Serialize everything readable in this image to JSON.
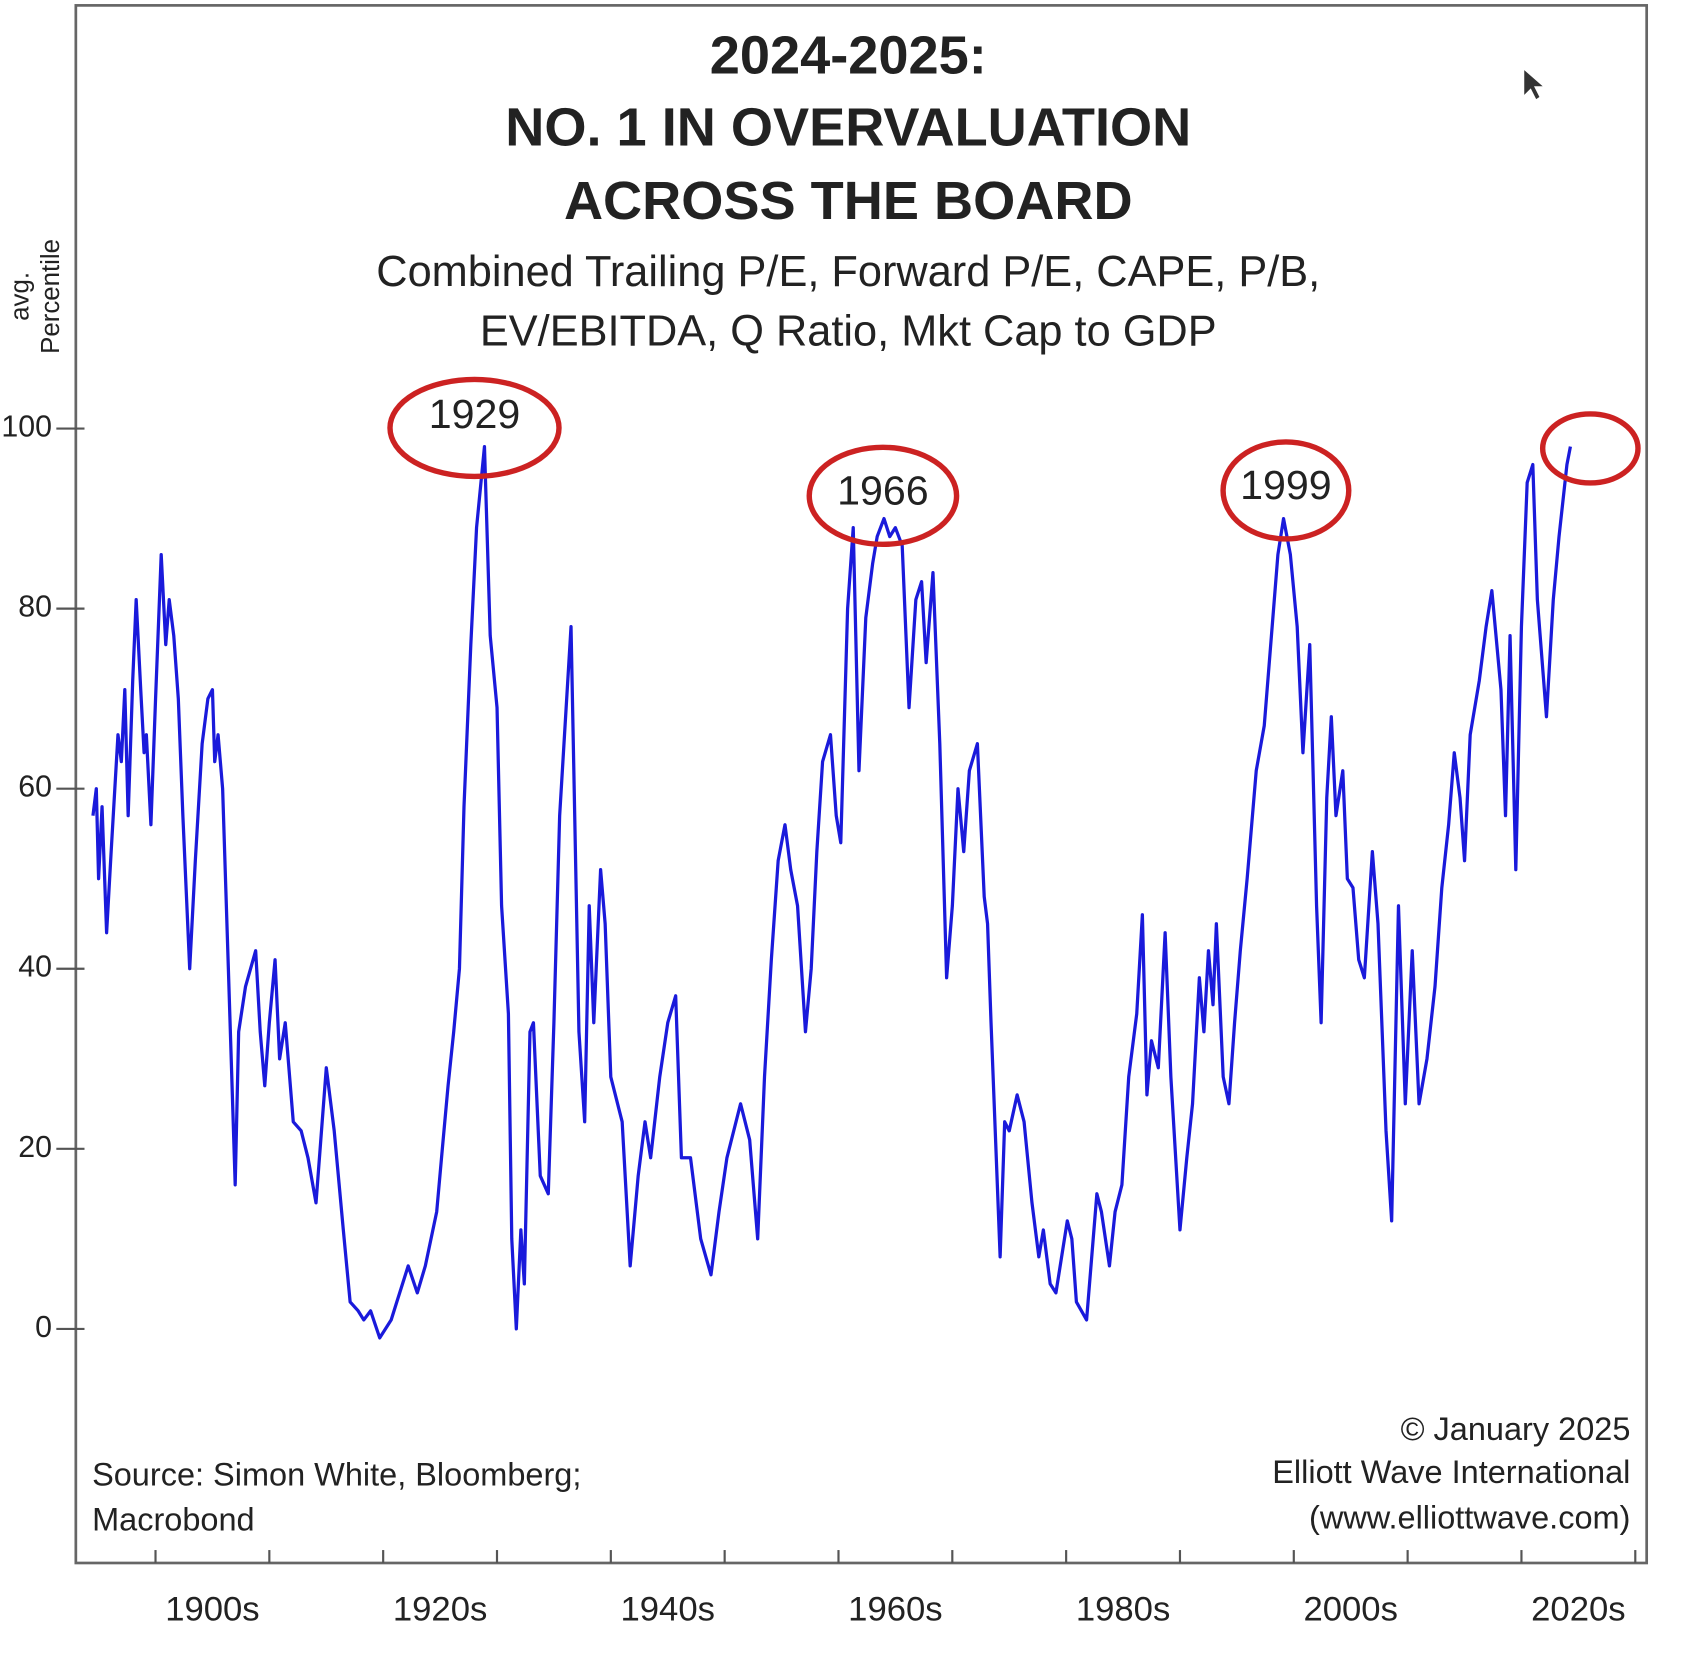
{
  "chart_data": {
    "type": "line",
    "title": [
      "2024-2025:",
      "NO. 1 IN OVERVALUATION",
      "ACROSS THE BOARD"
    ],
    "subtitle": [
      "Combined Trailing P/E, Forward P/E, CAPE, P/B,",
      "EV/EBITDA, Q Ratio, Mkt Cap to GDP"
    ],
    "y_label": [
      "avg.",
      "Percentile"
    ],
    "source": [
      "Source: Simon White, Bloomberg;",
      "Macrobond"
    ],
    "credit": [
      "© January 2025",
      "Elliott Wave International",
      "(www.elliottwave.com)"
    ],
    "annotations": [
      "1929",
      "1966",
      "1999"
    ],
    "color": "#1a1adb",
    "xlim": [
      1893,
      2031
    ],
    "ylim": [
      -26,
      147
    ],
    "yticks": [
      0,
      20,
      40,
      60,
      80,
      100
    ],
    "xticks": [
      {
        "value": 1905,
        "label": "1900s"
      },
      {
        "value": 1925,
        "label": "1920s"
      },
      {
        "value": 1945,
        "label": "1940s"
      },
      {
        "value": 1965,
        "label": "1960s"
      },
      {
        "value": 1985,
        "label": "1980s"
      },
      {
        "value": 2005,
        "label": "2000s"
      },
      {
        "value": 2025,
        "label": "2020s"
      }
    ],
    "xminorticks": [
      1900,
      1910,
      1920,
      1930,
      1940,
      1950,
      1960,
      1970,
      1980,
      1990,
      2000,
      2010,
      2020,
      2030
    ],
    "x": [
      1894.5,
      1894.8,
      1895.0,
      1895.3,
      1895.7,
      1896.1,
      1896.7,
      1897.0,
      1897.3,
      1897.6,
      1898.0,
      1898.3,
      1898.7,
      1899.0,
      1899.2,
      1899.6,
      1900.0,
      1900.5,
      1900.9,
      1901.2,
      1901.6,
      1902.0,
      1902.4,
      1903.0,
      1903.5,
      1904.1,
      1904.6,
      1905.0,
      1905.2,
      1905.5,
      1905.9,
      1906.4,
      1907.0,
      1907.3,
      1907.9,
      1908.8,
      1909.2,
      1909.6,
      1910.0,
      1910.5,
      1910.9,
      1911.4,
      1912.1,
      1912.8,
      1913.4,
      1914.1,
      1915.0,
      1915.7,
      1916.5,
      1917.1,
      1917.8,
      1918.3,
      1918.9,
      1919.7,
      1920.7,
      1921.2,
      1922.2,
      1923.0,
      1923.7,
      1924.7,
      1925.2,
      1925.7,
      1926.2,
      1926.7,
      1927.1,
      1927.7,
      1928.2,
      1928.9,
      1929.4,
      1930.0,
      1930.4,
      1931.0,
      1931.3,
      1931.7,
      1932.1,
      1932.4,
      1932.9,
      1933.2,
      1933.8,
      1934.5,
      1935.0,
      1935.5,
      1936.5,
      1937.2,
      1937.7,
      1938.1,
      1938.5,
      1939.1,
      1939.5,
      1940.0,
      1941.0,
      1941.7,
      1942.4,
      1943.0,
      1943.5,
      1944.3,
      1945.0,
      1945.7,
      1946.2,
      1947.0,
      1947.9,
      1948.8,
      1949.5,
      1950.2,
      1951.4,
      1952.2,
      1952.9,
      1953.5,
      1954.1,
      1954.7,
      1955.3,
      1955.8,
      1956.4,
      1957.1,
      1957.6,
      1958.1,
      1958.6,
      1959.3,
      1959.8,
      1960.2,
      1960.8,
      1961.3,
      1961.8,
      1962.4,
      1963.0,
      1963.4,
      1964.0,
      1964.5,
      1965.0,
      1965.6,
      1966.2,
      1966.8,
      1967.3,
      1967.7,
      1968.3,
      1968.9,
      1969.5,
      1970.0,
      1970.5,
      1971.0,
      1971.5,
      1972.2,
      1972.8,
      1973.1,
      1973.4,
      1974.2,
      1974.6,
      1975.0,
      1975.7,
      1976.3,
      1977.0,
      1977.6,
      1978.0,
      1978.6,
      1979.1,
      1980.1,
      1980.5,
      1980.9,
      1981.8,
      1982.7,
      1983.1,
      1983.8,
      1984.3,
      1984.9,
      1985.5,
      1986.2,
      1986.7,
      1987.1,
      1987.5,
      1988.1,
      1988.7,
      1989.2,
      1990.0,
      1990.6,
      1991.1,
      1991.7,
      1992.1,
      1992.5,
      1992.9,
      1993.2,
      1993.8,
      1994.3,
      1994.8,
      1995.3,
      1995.9,
      1996.7,
      1997.4,
      1998.1,
      1998.6,
      1999.1,
      1999.7,
      2000.3,
      2000.8,
      2001.4,
      2002.0,
      2002.4,
      2002.9,
      2003.3,
      2003.7,
      2004.3,
      2004.7,
      2005.2,
      2005.7,
      2006.2,
      2006.9,
      2007.4,
      2008.1,
      2008.6,
      2009.2,
      2009.8,
      2010.4,
      2011.0,
      2011.7,
      2012.4,
      2013.0,
      2013.6,
      2014.1,
      2014.6,
      2015.0,
      2015.5,
      2016.3,
      2016.9,
      2017.4,
      2018.2,
      2018.6,
      2019.0,
      2019.5,
      2020.0,
      2020.5,
      2021.0,
      2021.4,
      2022.2,
      2022.8,
      2023.3,
      2024.0,
      2024.3
    ],
    "values": [
      57,
      60,
      50,
      58,
      44,
      53,
      66,
      63,
      71,
      57,
      72,
      81,
      71,
      64,
      66,
      56,
      70,
      86,
      76,
      81,
      77,
      70,
      57,
      40,
      52,
      65,
      70,
      71,
      63,
      66,
      60,
      40,
      16,
      33,
      38,
      42,
      33,
      27,
      34,
      41,
      30,
      34,
      23,
      22,
      19,
      14,
      29,
      22,
      11,
      3,
      2,
      1,
      2,
      -1,
      1,
      3,
      7,
      4,
      7,
      13,
      20,
      27,
      33,
      40,
      58,
      76,
      89,
      98,
      77,
      69,
      47,
      35,
      10,
      0,
      11,
      5,
      33,
      34,
      17,
      15,
      34,
      57,
      78,
      33,
      23,
      47,
      34,
      51,
      45,
      28,
      23,
      7,
      17,
      23,
      19,
      28,
      34,
      37,
      19,
      19,
      10,
      6,
      13,
      19,
      25,
      21,
      10,
      28,
      41,
      52,
      56,
      51,
      47,
      33,
      40,
      53,
      63,
      66,
      57,
      54,
      80,
      89,
      62,
      79,
      85,
      88,
      90,
      88,
      89,
      87,
      69,
      81,
      83,
      74,
      84,
      65,
      39,
      47,
      60,
      53,
      62,
      65,
      48,
      45,
      34,
      8,
      23,
      22,
      26,
      23,
      14,
      8,
      11,
      5,
      4,
      12,
      10,
      3,
      1,
      15,
      13,
      7,
      13,
      16,
      28,
      35,
      46,
      26,
      32,
      29,
      44,
      28,
      11,
      19,
      25,
      39,
      33,
      42,
      36,
      45,
      28,
      25,
      34,
      42,
      50,
      62,
      67,
      78,
      86,
      90,
      86,
      78,
      64,
      76,
      47,
      34,
      59,
      68,
      57,
      62,
      50,
      49,
      41,
      39,
      53,
      45,
      22,
      12,
      47,
      25,
      42,
      25,
      30,
      38,
      49,
      56,
      64,
      59,
      52,
      66,
      72,
      78,
      82,
      71,
      57,
      77,
      51,
      78,
      94,
      96,
      81,
      68,
      81,
      88,
      96,
      98
    ]
  }
}
